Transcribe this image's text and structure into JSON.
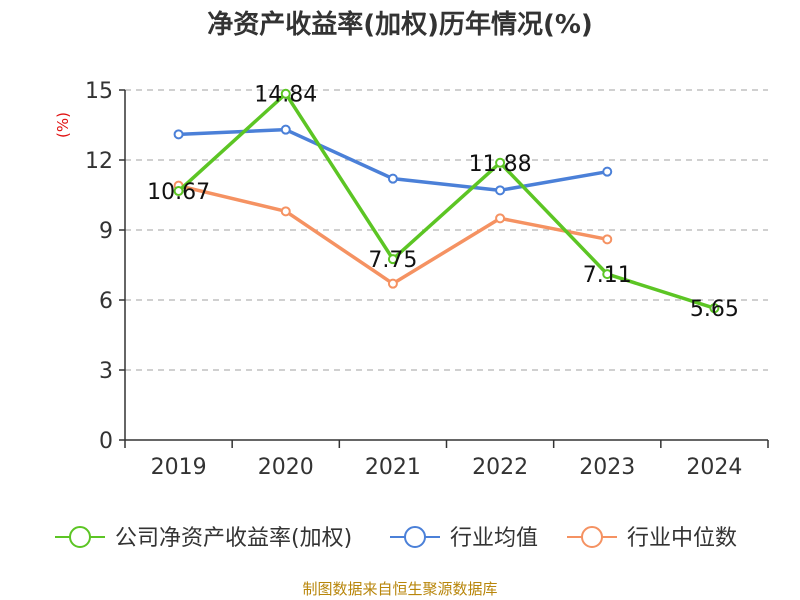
{
  "chart_data": {
    "type": "line",
    "title": "净资产收益率(加权)历年情况(%)",
    "ylabel": "(%)",
    "xlabel": "",
    "categories": [
      "2019",
      "2020",
      "2021",
      "2022",
      "2023",
      "2024"
    ],
    "ylim": [
      0,
      15
    ],
    "yticks": [
      0,
      3,
      6,
      9,
      12,
      15
    ],
    "grid": true,
    "legend_position": "bottom",
    "series": [
      {
        "name": "公司净资产收益率(加权)",
        "color": "#5cc524",
        "values": [
          10.67,
          14.84,
          7.75,
          11.88,
          7.11,
          5.65
        ],
        "labels": [
          "10.67",
          "14.84",
          "7.75",
          "11.88",
          "7.11",
          "5.65"
        ]
      },
      {
        "name": "行业均值",
        "color": "#4b80d8",
        "values": [
          13.1,
          13.3,
          11.2,
          10.7,
          11.5,
          null
        ]
      },
      {
        "name": "行业中位数",
        "color": "#f59262",
        "values": [
          10.9,
          9.8,
          6.7,
          9.5,
          8.6,
          null
        ]
      }
    ]
  },
  "source": "制图数据来自恒生聚源数据库"
}
